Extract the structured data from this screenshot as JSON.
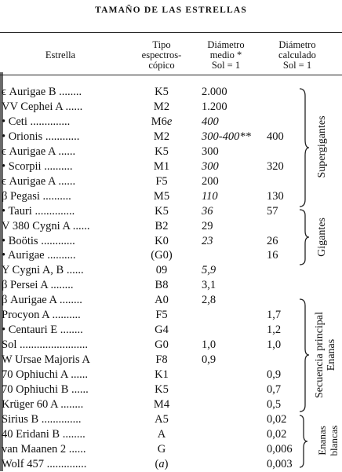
{
  "title": "TAMAÑO DE LAS ESTRELLAS",
  "headers": {
    "star": "Estrella",
    "spectral": [
      "Tipo",
      "espectros-",
      "cópico"
    ],
    "diam_mean": [
      "Diámetro",
      "medio *",
      "Sol = 1"
    ],
    "diam_calc": [
      "Diámetro",
      "calculado",
      "Sol = 1"
    ]
  },
  "rows": [
    {
      "star": "ϵ Aurigae B ........",
      "spectral": "K5",
      "d1": "2.000",
      "d2": ""
    },
    {
      "star": "VV Cephei A ......",
      "spectral": "M2",
      "d1": "1.200",
      "d2": ""
    },
    {
      "star": "• Ceti ..............",
      "spectral": "M6e",
      "d1": "400",
      "d2": ""
    },
    {
      "star": "• Orionis ............",
      "spectral": "M2",
      "d1": "300-400**",
      "d2": "400"
    },
    {
      "star": "ϵ Aurigae A ......",
      "spectral": "K5",
      "d1": "300",
      "d2": ""
    },
    {
      "star": "• Scorpii ..........",
      "spectral": "M1",
      "d1": "300",
      "d2": "320"
    },
    {
      "star": "ϵ Aurigae A ......",
      "spectral": "F5",
      "d1": "200",
      "d2": ""
    },
    {
      "star": "β Pegasi ..........",
      "spectral": "M5",
      "d1": "110",
      "d2": "130"
    },
    {
      "star": "• Tauri ..............",
      "spectral": "K5",
      "d1": "36",
      "d2": "57"
    },
    {
      "star": "V 380 Cygni A ......",
      "spectral": "B2",
      "d1": "29",
      "d2": ""
    },
    {
      "star": "• Boötis ............",
      "spectral": "K0",
      "d1": "23",
      "d2": "26"
    },
    {
      "star": "• Aurigae ..........",
      "spectral": "(G0)",
      "d1": "",
      "d2": "16"
    },
    {
      "star": "Y Cygni A, B ......",
      "spectral": "09",
      "d1": "5,9",
      "d2": ""
    },
    {
      "star": "β Persei A ........",
      "spectral": "B8",
      "d1": "3,1",
      "d2": ""
    },
    {
      "star": "β Aurigae A ........",
      "spectral": "A0",
      "d1": "2,8",
      "d2": ""
    },
    {
      "star": "Procyon A ..........",
      "spectral": "F5",
      "d1": "",
      "d2": "1,7"
    },
    {
      "star": "• Centauri E ........",
      "spectral": "G4",
      "d1": "",
      "d2": "1,2"
    },
    {
      "star": "Sol ........................",
      "spectral": "G0",
      "d1": "1,0",
      "d2": "1,0"
    },
    {
      "star": "W Ursae Majoris A",
      "spectral": "F8",
      "d1": "0,9",
      "d2": ""
    },
    {
      "star": "70 Ophiuchi A ......",
      "spectral": "K1",
      "d1": "",
      "d2": "0,9"
    },
    {
      "star": "70 Ophiuchi B ......",
      "spectral": "K5",
      "d1": "",
      "d2": "0,7"
    },
    {
      "star": "Krüger 60 A ........",
      "spectral": "M4",
      "d1": "",
      "d2": "0,5"
    },
    {
      "star": "Sirius B ..............",
      "spectral": "A5",
      "d1": "",
      "d2": "0,02"
    },
    {
      "star": "40 Eridani B ........",
      "spectral": "A",
      "d1": "",
      "d2": "0,02"
    },
    {
      "star": "van Maanen 2 ......",
      "spectral": "G",
      "d1": "",
      "d2": "0,006"
    },
    {
      "star": "Wolf 457 ..............",
      "spectral": "(a)",
      "d1": "",
      "d2": "0,003"
    }
  ],
  "groups": {
    "supergigantes": "Supergigantes",
    "gigantes": "Gigantes",
    "secuencia": [
      "Secuencia principal",
      "Enanas"
    ],
    "enanas_blancas": [
      "Enanas",
      "blancas"
    ]
  }
}
